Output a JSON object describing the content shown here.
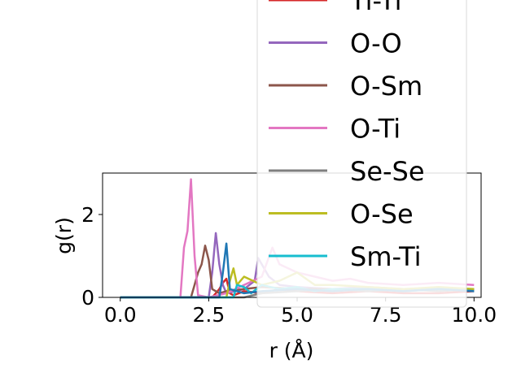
{
  "chart_data": {
    "type": "line",
    "title": "",
    "xlabel": "r (Å)",
    "ylabel": "g(r)",
    "xlim": [
      -0.5,
      10.2
    ],
    "ylim": [
      0,
      3.0
    ],
    "xticks": [
      0.0,
      2.5,
      5.0,
      7.5,
      10.0
    ],
    "xtick_labels": [
      "0.0",
      "2.5",
      "5.0",
      "7.5",
      "10.0"
    ],
    "yticks": [
      0,
      2
    ],
    "ytick_labels": [
      "0",
      "2"
    ],
    "grid": false,
    "legend_placement": "upper-right, overflowing above axes",
    "legend_visible_entries": [
      "Ti-Ti",
      "O-O",
      "O-Sm",
      "O-Ti",
      "Se-Se",
      "O-Se",
      "Sm-Ti"
    ],
    "series": [
      {
        "name": "Ti-Ti",
        "color": "#d62728",
        "x": [
          0,
          2.6,
          2.7,
          2.8,
          2.9,
          3.0,
          3.1,
          3.2,
          3.5,
          4.0,
          4.5,
          5.0,
          6.0,
          7.0,
          8.0,
          9.0,
          10.0
        ],
        "y": [
          0,
          0,
          0.1,
          0.2,
          0.35,
          0.45,
          0.1,
          0.05,
          0.15,
          0.1,
          0.2,
          0.15,
          0.1,
          0.15,
          0.1,
          0.1,
          0.15
        ]
      },
      {
        "name": "O-O",
        "color": "#9467bd",
        "x": [
          0,
          2.5,
          2.6,
          2.7,
          2.8,
          2.9,
          3.0,
          3.5,
          3.8,
          3.9,
          4.2,
          4.5,
          5.0,
          6.0,
          7.0,
          8.0,
          9.0,
          10.0
        ],
        "y": [
          0,
          0,
          0.6,
          1.55,
          0.8,
          0.3,
          0.1,
          0.2,
          0.4,
          0.95,
          0.5,
          0.3,
          0.25,
          0.2,
          0.25,
          0.2,
          0.2,
          0.2
        ]
      },
      {
        "name": "O-Sm",
        "color": "#8c564b",
        "x": [
          0,
          2.0,
          2.1,
          2.2,
          2.3,
          2.4,
          2.5,
          2.6,
          2.8,
          3.0,
          3.5,
          4.0,
          5.0,
          6.0,
          7.0,
          8.0,
          9.0,
          10.0
        ],
        "y": [
          0,
          0,
          0.3,
          0.6,
          0.8,
          1.25,
          0.9,
          0.2,
          0.1,
          0.15,
          0.2,
          0.25,
          0.2,
          0.2,
          0.15,
          0.2,
          0.2,
          0.2
        ]
      },
      {
        "name": "O-Ti",
        "color": "#e377c2",
        "x": [
          0,
          1.7,
          1.8,
          1.9,
          2.0,
          2.1,
          2.2,
          2.5,
          3.0,
          3.5,
          4.0,
          4.3,
          4.5,
          5.0,
          5.5,
          6.0,
          6.5,
          7.0,
          8.0,
          9.0,
          10.0
        ],
        "y": [
          0,
          0,
          1.2,
          1.6,
          2.85,
          1.0,
          0.05,
          0.0,
          0.1,
          0.3,
          0.5,
          1.2,
          0.8,
          0.6,
          0.5,
          0.4,
          0.45,
          0.35,
          0.3,
          0.35,
          0.3
        ]
      },
      {
        "name": "Se-Se",
        "color": "#7f7f7f",
        "x": [
          0,
          3.5,
          4.0,
          5.0,
          6.0,
          7.0,
          8.0,
          9.0,
          10.0
        ],
        "y": [
          0,
          0,
          0.1,
          0.15,
          0.2,
          0.15,
          0.2,
          0.15,
          0.2
        ]
      },
      {
        "name": "O-Se",
        "color": "#bcbd22",
        "x": [
          0,
          3.0,
          3.1,
          3.2,
          3.3,
          3.5,
          4.0,
          4.5,
          5.0,
          5.5,
          6.0,
          7.0,
          8.0,
          9.0,
          10.0
        ],
        "y": [
          0,
          0,
          0.4,
          0.7,
          0.3,
          0.5,
          0.3,
          0.4,
          0.6,
          0.3,
          0.3,
          0.25,
          0.2,
          0.25,
          0.2
        ]
      },
      {
        "name": "Sm-Ti",
        "color": "#17becf",
        "x": [
          0,
          3.2,
          3.3,
          3.5,
          3.7,
          4.0,
          4.5,
          5.0,
          5.5,
          6.0,
          7.0,
          8.0,
          9.0,
          10.0
        ],
        "y": [
          0,
          0,
          0.3,
          0.25,
          0.1,
          0.3,
          0.2,
          0.25,
          0.15,
          0.2,
          0.2,
          0.15,
          0.2,
          0.15
        ]
      },
      {
        "name": "",
        "color": "#1f77b4",
        "x": [
          0,
          2.8,
          2.9,
          3.0,
          3.1,
          3.5,
          4.0,
          5.0,
          6.0,
          7.0,
          8.0,
          9.0,
          10.0
        ],
        "y": [
          0,
          0,
          0.6,
          1.3,
          0.2,
          0.1,
          0.15,
          0.2,
          0.15,
          0.2,
          0.15,
          0.2,
          0.15
        ]
      }
    ]
  }
}
